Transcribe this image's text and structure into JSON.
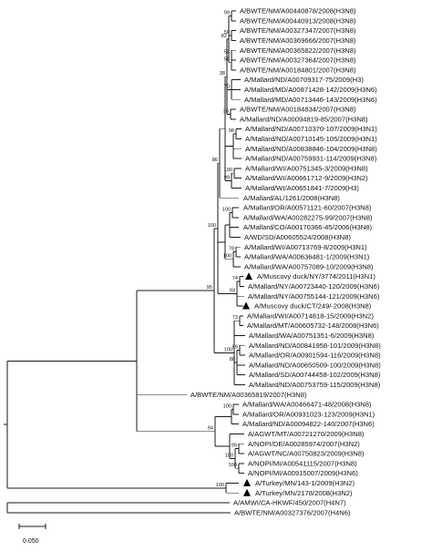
{
  "taxa": [
    {
      "label": "A/BWTE/NM/A00440878/2008(H3N8)"
    },
    {
      "label": "A/BWTE/NM/A00440913/2008(H3N8)"
    },
    {
      "label": "A/BWTE/NM/A00327347/2007(H3N8)"
    },
    {
      "label": "A/BWTE/NM/A00369666/2007(H3N8)"
    },
    {
      "label": "A/BWTE/NM/A00365822/2007(H3N8)"
    },
    {
      "label": "A/BWTE/NM/A00327364/2007(H3N8)"
    },
    {
      "label": "A/BWTE/NM/A00184801/2007(H3N8)"
    },
    {
      "label": "A/Mallard/ND/A00709317-75/2009(H3)"
    },
    {
      "label": "A/Mallard/MD/A00871428-142/2009(H3N6)"
    },
    {
      "label": "A/Mallard/MD/A00713446-143/2009(H3N6)"
    },
    {
      "label": "A/BWTE/NM/A00184834/2007(H3N8)"
    },
    {
      "label": "A/Mallard/ND/A00094819-85/2007(H3N8)"
    },
    {
      "label": "A/Mallard/ND/A00710370-107/2009(H3N1)"
    },
    {
      "label": "A/Mallard/ND/A00710145-105/2009(H3N1)"
    },
    {
      "label": "A/Mallard/ND/A00838846-104/2009(H3N8)"
    },
    {
      "label": "A/Mallard/ND/A00759931-114/2009(H3N8)"
    },
    {
      "label": "A/Mallard/WI/A00751345-3/2009(H3N8)"
    },
    {
      "label": "A/Mallard/WI/A00661712-9/2009(H3N2)"
    },
    {
      "label": "A/Mallard/WI/A00651841-7/2009(H3)"
    },
    {
      "label": "A/Mallard/AL/1261/2008(H3N8)"
    },
    {
      "label": "A/Mallard/OR/A00571121-60/2007(H3N8)"
    },
    {
      "label": "A/Mallard/WA/A00282275-99/2007(H3N8)"
    },
    {
      "label": "A/Mallard/CO/A00170366-45/2006(H3N8)"
    },
    {
      "label": "A/WD/SD/A00605524/2008(H3N8)"
    },
    {
      "label": "A/Mallard/WI/A00713769-8/2009(H3N1)"
    },
    {
      "label": "A/Mallard/WA/A00636481-1/2009(H3N1)"
    },
    {
      "label": "A/Mallard/WA/A00757089-10/2009(H3N8)"
    },
    {
      "label": "A/Muscovy duck/NY/3774/2011(H3N1)",
      "marker": true
    },
    {
      "label": "A/Mallard/NY/A00723440-120/2009(H3N6)"
    },
    {
      "label": "A/Mallard/NY/A00755144-121/2009(H3N6)"
    },
    {
      "label": "A/Muscovy duck/CT/249/-2008(H3N8)",
      "marker": true
    },
    {
      "label": "A/Mallard/WI/A00714818-15/2009(H3N2)"
    },
    {
      "label": "A/Mallard/MT/A00605732-148/2008(H3N6)"
    },
    {
      "label": "A/Mallard/WA/A00751351-6/2009(H3N8)"
    },
    {
      "label": "A/Mallard/ND/A00841958-101/2009(H3N8)"
    },
    {
      "label": "A/Mallard/OR/A00901594-116/2009(H3N8)"
    },
    {
      "label": "A/Mallard/ND/A00650509-100/2009(H3N8)"
    },
    {
      "label": "A/Mallard/SD/A00744458-102/2009(H3N8)"
    },
    {
      "label": "A/Mallard/ND/A00753759-115/2009(H3N8)"
    },
    {
      "label": "A/BWTE/NM/A00365819/2007(H3N8)"
    },
    {
      "label": "A/Mallard/WA/A00466471-48/2008(H3N8)"
    },
    {
      "label": "A/Mallard/OR/A00931023-123/2009(H3N1)"
    },
    {
      "label": "A/Mallard/ND/A00094822-140/2007(H3N6)"
    },
    {
      "label": "A/AGWT/MT/A00721270/2009(H3N8)"
    },
    {
      "label": "A/NOPI/DE/A00285974/2007(H3N2)"
    },
    {
      "label": "A/AGWT/NC/A00750823/2009(H3N8)"
    },
    {
      "label": "A/NOPI/MI/A00541115/2007(H3N8)"
    },
    {
      "label": "A/NOPI/MI/A00915007/2009(H3N6)"
    },
    {
      "label": "A/Turkey/MN/143-1/2009(H3N2)",
      "marker": true
    },
    {
      "label": "A/Turkey/MN/2178/2008(H3N2)",
      "marker": true
    },
    {
      "label": "A/AMWI/CA-HKWF/450/2007(H4N7)"
    },
    {
      "label": "A/BWTE/NM/A00327376/2007(H4N6)"
    }
  ],
  "bootstrap": [
    "99",
    "50",
    "53",
    "56",
    "82",
    "70",
    "36",
    "38",
    "98",
    "100",
    "99",
    "86",
    "100",
    "78",
    "100",
    "74",
    "93",
    "100",
    "95",
    "73",
    "89",
    "88",
    "100",
    "94",
    "100",
    "99",
    "100",
    "100",
    "100"
  ],
  "scale_label": "0.050",
  "colors": {
    "branch": "#1a1a1a",
    "text": "#111111",
    "marker": "#000000"
  }
}
